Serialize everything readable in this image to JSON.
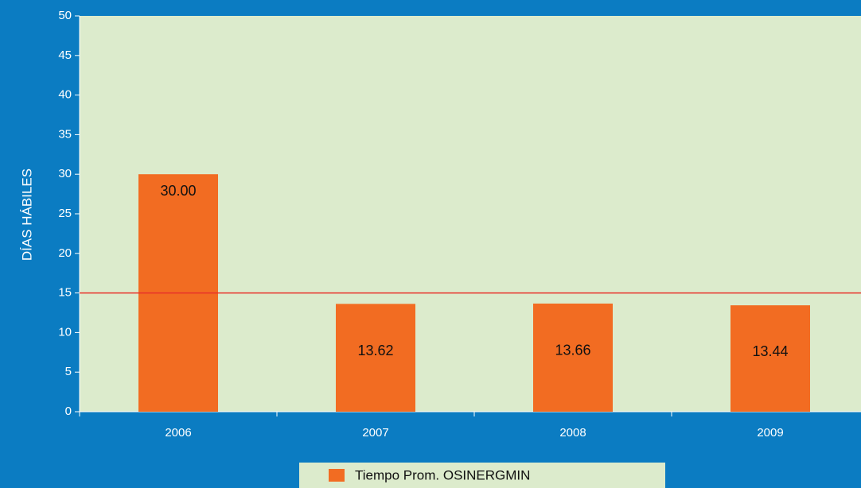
{
  "chart_data": {
    "type": "bar",
    "y_label": "DÍAS HÁBILES",
    "categories": [
      "2006",
      "2007",
      "2008",
      "2009"
    ],
    "series": [
      {
        "name": "Tiempo Prom. OSINERGMIN",
        "color": "#f26c22",
        "values": [
          30,
          13.62,
          13.66,
          13.44
        ],
        "value_labels": [
          "30.00",
          "13.62",
          "13.66",
          "13.44"
        ]
      }
    ],
    "reference_line": {
      "value": 15,
      "color": "#e8322a"
    },
    "ylim": [
      0,
      50
    ],
    "yticks": [
      0,
      5,
      10,
      15,
      20,
      25,
      30,
      35,
      40,
      45,
      50
    ]
  }
}
